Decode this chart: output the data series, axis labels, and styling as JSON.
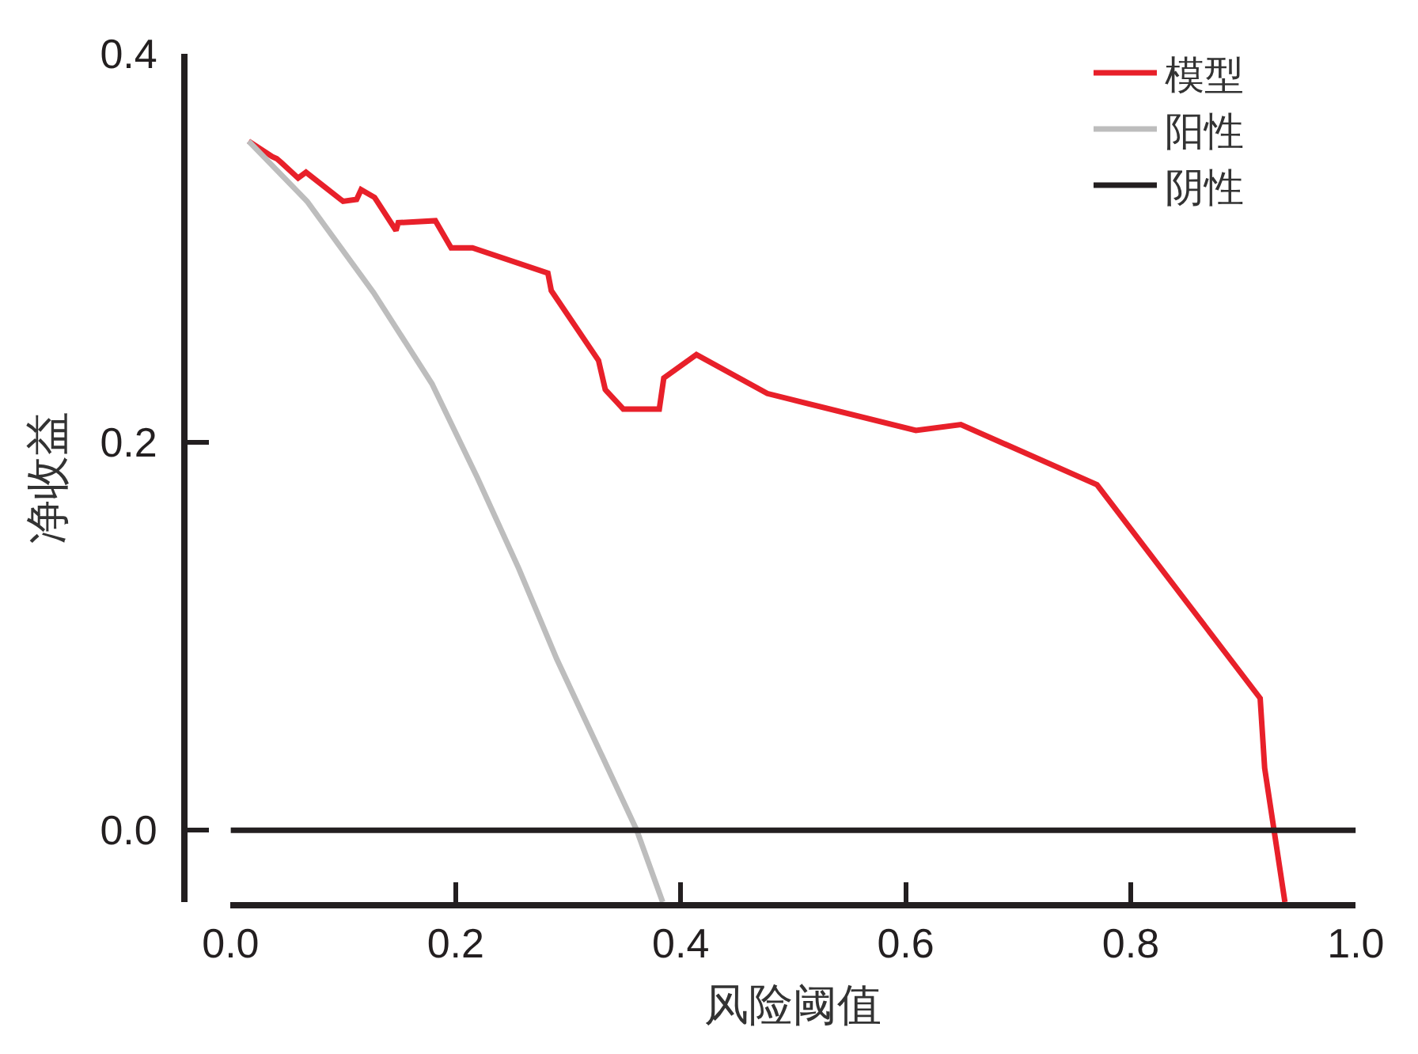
{
  "chart_data": {
    "type": "line",
    "xlabel": "风险阈值",
    "ylabel": "净收益",
    "xlim": [
      0,
      1.0
    ],
    "ylim": [
      -0.037,
      0.4
    ],
    "xticks": [
      {
        "value": 0,
        "label": "0.0"
      },
      0.2,
      0.4,
      0.6,
      0.8,
      {
        "value": 1,
        "label": "1.0"
      }
    ],
    "yticks": [
      {
        "value": 0,
        "label": "0.0"
      },
      0.2,
      0.4
    ],
    "grid": false,
    "legend": "top right",
    "series": [
      {
        "name": "模型",
        "color": "#e8202a",
        "x": [
          0.016,
          0.037,
          0.041,
          0.045,
          0.06,
          0.067,
          0.1,
          0.112,
          0.116,
          0.128,
          0.147,
          0.149,
          0.182,
          0.196,
          0.215,
          0.282,
          0.285,
          0.327,
          0.333,
          0.349,
          0.381,
          0.385,
          0.414,
          0.477,
          0.609,
          0.649,
          0.77,
          0.915,
          0.919,
          0.937
        ],
        "values": [
          0.355,
          0.347,
          0.346,
          0.344,
          0.336,
          0.339,
          0.324,
          0.325,
          0.33,
          0.326,
          0.309,
          0.313,
          0.314,
          0.3,
          0.3,
          0.287,
          0.278,
          0.242,
          0.227,
          0.217,
          0.217,
          0.233,
          0.245,
          0.225,
          0.206,
          0.209,
          0.178,
          0.068,
          0.032,
          -0.037
        ]
      },
      {
        "name": "阳性",
        "color": "#bdbdbd",
        "x": [
          0.016,
          0.068,
          0.127,
          0.179,
          0.219,
          0.256,
          0.29,
          0.328,
          0.361,
          0.384
        ],
        "values": [
          0.355,
          0.324,
          0.277,
          0.23,
          0.182,
          0.135,
          0.088,
          0.041,
          0.0,
          -0.037
        ]
      },
      {
        "name": "阴性",
        "color": "#231f20",
        "x": [
          0,
          1.0
        ],
        "values": [
          0,
          0
        ]
      }
    ]
  }
}
